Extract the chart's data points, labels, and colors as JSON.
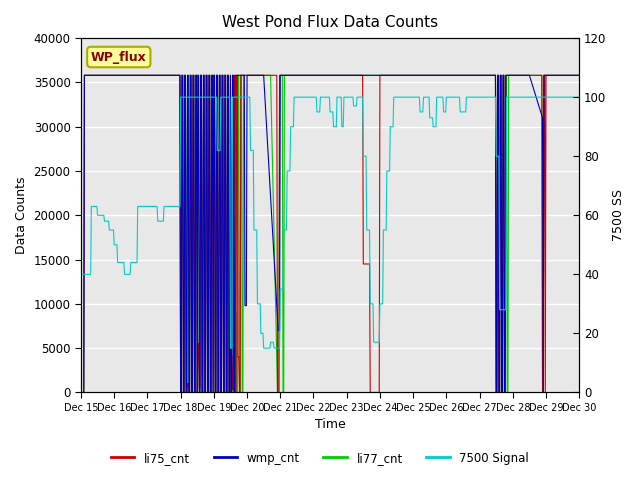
{
  "title": "West Pond Flux Data Counts",
  "xlabel": "Time",
  "ylabel_left": "Data Counts",
  "ylabel_right": "7500 SS",
  "ylim_left": [
    0,
    40000
  ],
  "ylim_right": [
    0,
    120
  ],
  "legend_label": "WP_flux",
  "series_labels": [
    "li75_cnt",
    "wmp_cnt",
    "li77_cnt",
    "7500 Signal"
  ],
  "series_colors": [
    "#cc0000",
    "#0000bb",
    "#00cc00",
    "#00cccc"
  ],
  "bg_color_light": "#e8e8e8",
  "bg_color_dark": "#d0d0d0",
  "fig_bg": "#ffffff",
  "xtick_labels": [
    "Dec 15",
    "Dec 16",
    "Dec 17",
    "Dec 18",
    "Dec 19",
    "Dec 20",
    "Dec 21",
    "Dec 22",
    "Dec 23",
    "Dec 24",
    "Dec 25",
    "Dec 26",
    "Dec 27",
    "Dec 28",
    "Dec 29",
    "Dec 30"
  ],
  "yticks_left": [
    0,
    5000,
    10000,
    15000,
    20000,
    25000,
    30000,
    35000,
    40000
  ],
  "yticks_right": [
    0,
    20,
    40,
    60,
    80,
    100,
    120
  ],
  "base_cnt": 35800,
  "n_days": 15
}
